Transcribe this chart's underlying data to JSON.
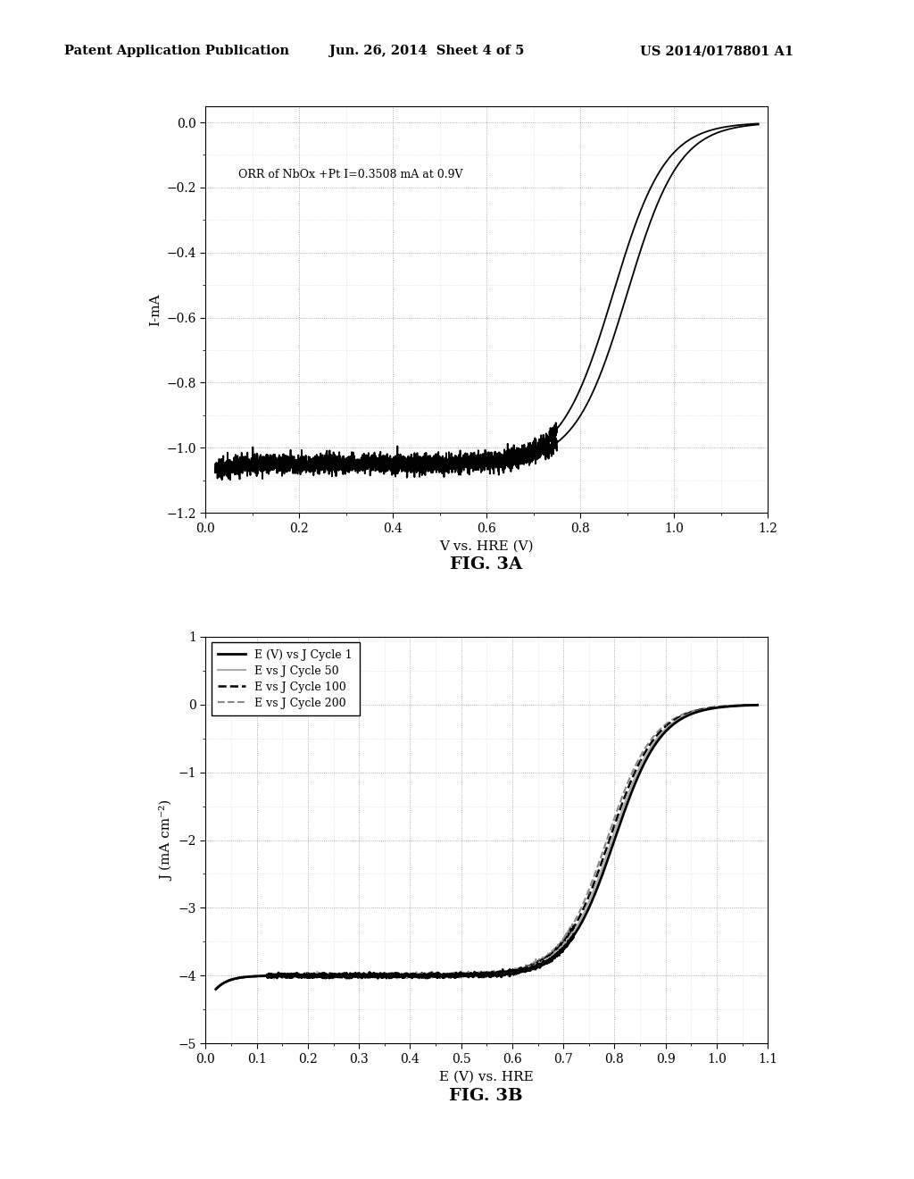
{
  "header_left": "Patent Application Publication",
  "header_mid": "Jun. 26, 2014  Sheet 4 of 5",
  "header_right": "US 2014/0178801 A1",
  "fig3a_title": "FIG. 3A",
  "fig3b_title": "FIG. 3B",
  "fig3a_xlabel": "V vs. HRE (V)",
  "fig3a_ylabel": "I-mA",
  "fig3a_annotation": "ORR of NbOx +Pt I=0.3508 mA at 0.9V",
  "fig3a_xlim": [
    0,
    1.2
  ],
  "fig3a_ylim": [
    -1.2,
    0.05
  ],
  "fig3a_xticks": [
    0,
    0.2,
    0.4,
    0.6,
    0.8,
    1.0,
    1.2
  ],
  "fig3a_yticks": [
    0,
    -0.2,
    -0.4,
    -0.6,
    -0.8,
    -1.0,
    -1.2
  ],
  "fig3b_xlabel": "E (V) vs. HRE",
  "fig3b_ylabel": "J (mA cm⁻²)",
  "fig3b_xlim": [
    0.0,
    1.1
  ],
  "fig3b_ylim": [
    -5,
    1
  ],
  "fig3b_xticks": [
    0.0,
    0.1,
    0.2,
    0.3,
    0.4,
    0.5,
    0.6,
    0.7,
    0.8,
    0.9,
    1.0,
    1.1
  ],
  "fig3b_yticks": [
    1,
    0,
    -1,
    -2,
    -3,
    -4,
    -5
  ],
  "legend_entries": [
    {
      "label": "E (V) vs J Cycle 1",
      "linestyle": "solid",
      "color": "#000000",
      "lw": 2.0
    },
    {
      "label": "E vs J Cycle 50",
      "linestyle": "solid",
      "color": "#aaaaaa",
      "lw": 1.5
    },
    {
      "label": "E vs J Cycle 100",
      "linestyle": "dashed",
      "color": "#000000",
      "lw": 1.8
    },
    {
      "label": "E vs J Cycle 200",
      "linestyle": "dashed",
      "color": "#888888",
      "lw": 1.5
    }
  ],
  "background_color": "#ffffff",
  "grid_color": "#999999",
  "line_color": "#000000"
}
